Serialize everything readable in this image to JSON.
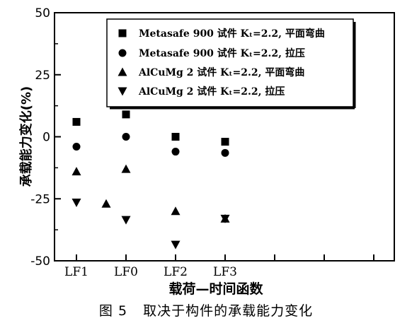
{
  "chart_data": {
    "type": "scatter",
    "title": "",
    "xlabel": "载荷—时间函数",
    "ylabel": "承载能力变化(%)",
    "ylim": [
      -50,
      50
    ],
    "y_ticks": [
      50,
      25,
      0,
      -25,
      -50
    ],
    "x_ticks": [
      "LF1",
      "LF0",
      "LF2",
      "LF3"
    ],
    "grid": false,
    "legend_position": "top-right",
    "series": [
      {
        "name": "Metasafe 900 试件 Kₜ=2.2, 平面弯曲",
        "marker": "square",
        "points": [
          {
            "x": "LF1",
            "y": 6
          },
          {
            "x": "LF0",
            "y": 9
          },
          {
            "x": "LF2",
            "y": 0
          },
          {
            "x": "LF3",
            "y": -2
          }
        ]
      },
      {
        "name": "Metasafe 900 试件 Kₜ=2.2, 拉压",
        "marker": "circle",
        "points": [
          {
            "x": "LF1",
            "y": -4
          },
          {
            "x": "LF0",
            "y": 0
          },
          {
            "x": "LF2",
            "y": -6
          },
          {
            "x": "LF3",
            "y": -6.5
          }
        ]
      },
      {
        "name": "AlCuMg 2 试件 Kₜ=2.2, 平面弯曲",
        "marker": "triangle-up",
        "points": [
          {
            "x": "LF1",
            "y": -14
          },
          {
            "x": "LF0",
            "y": -13
          },
          {
            "x": "LF2",
            "y": -30
          },
          {
            "x": "LF3",
            "y": -33
          }
        ]
      },
      {
        "name": "AlCuMg 2 试件 Kₜ=2.2, 拉压",
        "marker": "triangle-down",
        "points": [
          {
            "x": "LF1",
            "y": -26.5
          },
          {
            "x": "LF0",
            "y": -33.5
          },
          {
            "x": "LF2",
            "y": -43.5
          },
          {
            "x": "LF3",
            "y": -33
          }
        ]
      }
    ],
    "extra_points": [
      {
        "x": "between LF1 and LF0",
        "y": -27,
        "marker": "triangle-up"
      }
    ]
  },
  "caption": {
    "number": "图 5",
    "text": "取决于构件的承载能力变化"
  }
}
